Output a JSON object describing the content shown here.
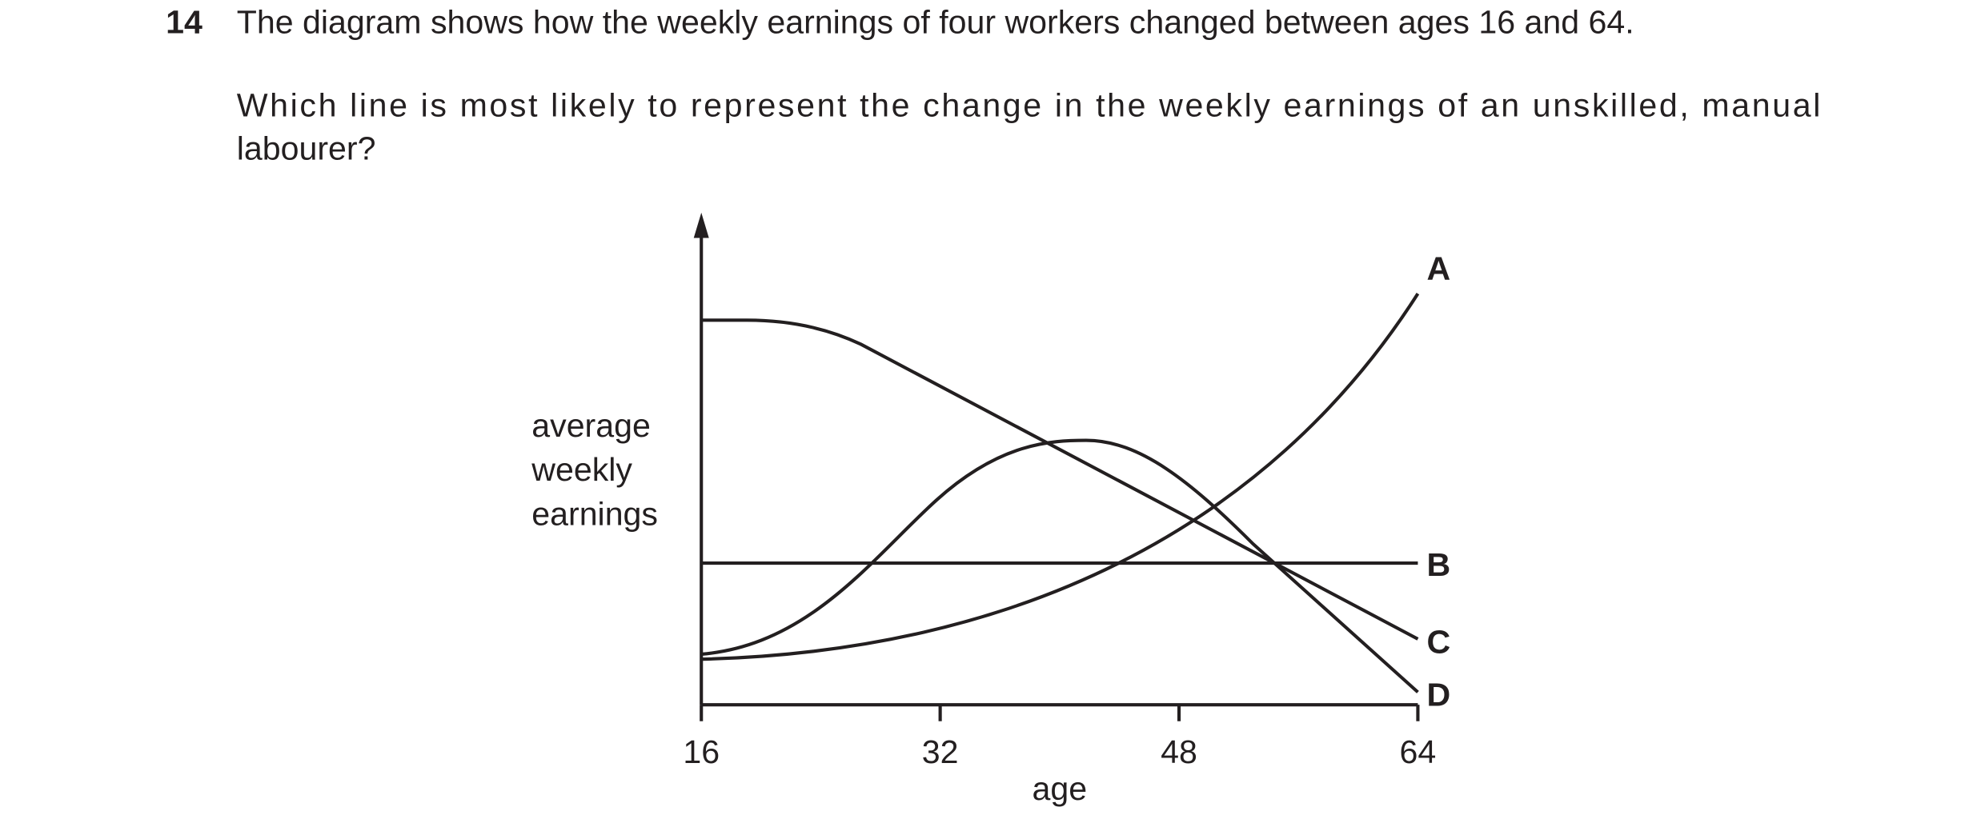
{
  "question": {
    "number": "14",
    "text": [
      "The diagram shows how the weekly earnings of four workers changed between ages 16 and 64.",
      "Which line is most likely to represent the change in the weekly earnings of an unskilled, manual",
      "labourer?"
    ]
  },
  "diagram": {
    "y_label": [
      "average",
      "weekly",
      "earnings"
    ],
    "x_label": "age",
    "xlim": [
      16,
      64
    ],
    "xticks": [
      16,
      32,
      48,
      64
    ],
    "line_labels": [
      "A",
      "B",
      "C",
      "D"
    ]
  }
}
